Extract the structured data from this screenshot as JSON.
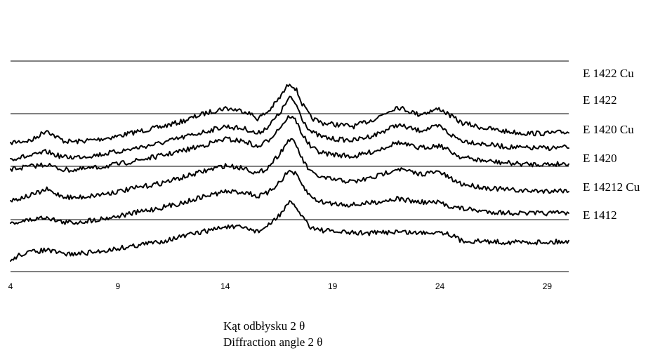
{
  "chart_data": {
    "type": "line",
    "title": "",
    "xlabel_lines": [
      "Kąt odbłysku 2 θ",
      "Diffraction angle 2 θ"
    ],
    "ylabel": "",
    "xlim": [
      4,
      30
    ],
    "xticks": [
      4,
      9,
      14,
      19,
      24,
      29
    ],
    "grid": true,
    "legend": "right (series labels beside curves)",
    "series": [
      {
        "name": "E 1422 Cu",
        "points": [
          [
            4,
            -58
          ],
          [
            5,
            -55
          ],
          [
            5.7,
            -40
          ],
          [
            6,
            -48
          ],
          [
            6.5,
            -56
          ],
          [
            7,
            -57
          ],
          [
            8,
            -54
          ],
          [
            9,
            -49
          ],
          [
            10,
            -42
          ],
          [
            11,
            -36
          ],
          [
            12,
            -28
          ],
          [
            13,
            -17
          ],
          [
            14,
            -9
          ],
          [
            15,
            -14
          ],
          [
            15.5,
            -24
          ],
          [
            16,
            -14
          ],
          [
            16.5,
            4
          ],
          [
            17,
            27
          ],
          [
            17.3,
            18
          ],
          [
            17.6,
            -4
          ],
          [
            18,
            -23
          ],
          [
            18.5,
            -30
          ],
          [
            19,
            -32
          ],
          [
            20,
            -35
          ],
          [
            21,
            -24
          ],
          [
            22,
            -7
          ],
          [
            23,
            -18
          ],
          [
            24,
            -10
          ],
          [
            24.5,
            -20
          ],
          [
            25,
            -30
          ],
          [
            26,
            -37
          ],
          [
            27,
            -42
          ],
          [
            28,
            -45
          ],
          [
            29,
            -45
          ],
          [
            30,
            -43
          ]
        ]
      },
      {
        "name": "E 1422",
        "points": [
          [
            4,
            -68
          ],
          [
            5,
            -64
          ],
          [
            5.7,
            -58
          ],
          [
            6,
            -62
          ],
          [
            6.5,
            -66
          ],
          [
            7,
            -66
          ],
          [
            8,
            -63
          ],
          [
            9,
            -58
          ],
          [
            10,
            -52
          ],
          [
            11,
            -46
          ],
          [
            12,
            -38
          ],
          [
            13,
            -30
          ],
          [
            14,
            -22
          ],
          [
            15,
            -26
          ],
          [
            15.5,
            -33
          ],
          [
            16,
            -22
          ],
          [
            16.5,
            -5
          ],
          [
            17,
            19
          ],
          [
            17.3,
            10
          ],
          [
            17.6,
            -12
          ],
          [
            18,
            -30
          ],
          [
            18.5,
            -37
          ],
          [
            19,
            -40
          ],
          [
            20,
            -42
          ],
          [
            21,
            -34
          ],
          [
            22,
            -20
          ],
          [
            23,
            -28
          ],
          [
            24,
            -22
          ],
          [
            24.5,
            -34
          ],
          [
            25,
            -42
          ],
          [
            26,
            -47
          ],
          [
            27,
            -51
          ],
          [
            28,
            -53
          ],
          [
            29,
            -53
          ],
          [
            30,
            -52
          ]
        ]
      },
      {
        "name": "E 1420 Cu",
        "points": [
          [
            4,
            -61
          ],
          [
            5,
            -57
          ],
          [
            5.7,
            -54
          ],
          [
            6,
            -58
          ],
          [
            6.5,
            -62
          ],
          [
            7,
            -62
          ],
          [
            8,
            -59
          ],
          [
            9,
            -54
          ],
          [
            10,
            -48
          ],
          [
            11,
            -42
          ],
          [
            12,
            -35
          ],
          [
            13,
            -27
          ],
          [
            14,
            -18
          ],
          [
            15,
            -22
          ],
          [
            15.5,
            -30
          ],
          [
            16,
            -20
          ],
          [
            16.5,
            -3
          ],
          [
            17,
            15
          ],
          [
            17.3,
            8
          ],
          [
            17.6,
            -12
          ],
          [
            18,
            -30
          ],
          [
            18.5,
            -38
          ],
          [
            19,
            -40
          ],
          [
            20,
            -43
          ],
          [
            21,
            -35
          ],
          [
            22,
            -23
          ],
          [
            23,
            -31
          ],
          [
            24,
            -27
          ],
          [
            24.5,
            -36
          ],
          [
            25,
            -44
          ],
          [
            26,
            -49
          ],
          [
            27,
            -52
          ],
          [
            28,
            -54
          ],
          [
            29,
            -54
          ],
          [
            30,
            -53
          ]
        ]
      },
      {
        "name": "E 1420",
        "points": [
          [
            4,
            -68
          ],
          [
            5,
            -60
          ],
          [
            5.7,
            -52
          ],
          [
            6,
            -57
          ],
          [
            6.5,
            -62
          ],
          [
            7,
            -64
          ],
          [
            8,
            -60
          ],
          [
            9,
            -55
          ],
          [
            10,
            -49
          ],
          [
            11,
            -43
          ],
          [
            12,
            -35
          ],
          [
            13,
            -26
          ],
          [
            14,
            -18
          ],
          [
            15,
            -22
          ],
          [
            15.5,
            -30
          ],
          [
            16,
            -20
          ],
          [
            16.5,
            -2
          ],
          [
            17,
            20
          ],
          [
            17.3,
            12
          ],
          [
            17.6,
            -10
          ],
          [
            18,
            -28
          ],
          [
            18.5,
            -35
          ],
          [
            19,
            -38
          ],
          [
            20,
            -41
          ],
          [
            21,
            -34
          ],
          [
            22,
            -22
          ],
          [
            23,
            -30
          ],
          [
            24,
            -27
          ],
          [
            24.5,
            -37
          ],
          [
            25,
            -44
          ],
          [
            26,
            -49
          ],
          [
            27,
            -52
          ],
          [
            28,
            -54
          ],
          [
            29,
            -54
          ],
          [
            30,
            -53
          ]
        ]
      },
      {
        "name": "E 14212 Cu",
        "points": [
          [
            4,
            -63
          ],
          [
            5,
            -58
          ],
          [
            5.7,
            -54
          ],
          [
            6,
            -58
          ],
          [
            6.5,
            -62
          ],
          [
            7,
            -62
          ],
          [
            8,
            -58
          ],
          [
            9,
            -53
          ],
          [
            10,
            -47
          ],
          [
            11,
            -41
          ],
          [
            12,
            -34
          ],
          [
            13,
            -25
          ],
          [
            14,
            -18
          ],
          [
            15,
            -19
          ],
          [
            15.5,
            -25
          ],
          [
            16,
            -20
          ],
          [
            16.5,
            -5
          ],
          [
            17,
            12
          ],
          [
            17.3,
            6
          ],
          [
            17.6,
            -10
          ],
          [
            18,
            -26
          ],
          [
            18.5,
            -33
          ],
          [
            19,
            -35
          ],
          [
            20,
            -37
          ],
          [
            21,
            -33
          ],
          [
            22,
            -28
          ],
          [
            23,
            -33
          ],
          [
            24,
            -34
          ],
          [
            24.5,
            -39
          ],
          [
            25,
            -42
          ],
          [
            26,
            -46
          ],
          [
            27,
            -48
          ],
          [
            28,
            -49
          ],
          [
            29,
            -49
          ],
          [
            30,
            -48
          ]
        ]
      },
      {
        "name": "E 1412",
        "points": [
          [
            4,
            -80
          ],
          [
            4.05,
            -78
          ],
          [
            4.5,
            -70
          ],
          [
            5,
            -67
          ],
          [
            5.7,
            -64
          ],
          [
            6,
            -67
          ],
          [
            6.5,
            -70
          ],
          [
            7,
            -70
          ],
          [
            8,
            -67
          ],
          [
            9,
            -62
          ],
          [
            10,
            -57
          ],
          [
            11,
            -52
          ],
          [
            12,
            -45
          ],
          [
            13,
            -38
          ],
          [
            14,
            -31
          ],
          [
            15,
            -33
          ],
          [
            15.5,
            -38
          ],
          [
            16,
            -30
          ],
          [
            16.5,
            -15
          ],
          [
            17,
            3
          ],
          [
            17.3,
            -3
          ],
          [
            17.6,
            -17
          ],
          [
            18,
            -32
          ],
          [
            18.5,
            -36
          ],
          [
            19,
            -38
          ],
          [
            20,
            -40
          ],
          [
            21,
            -40
          ],
          [
            22,
            -38
          ],
          [
            23,
            -40
          ],
          [
            24,
            -38
          ],
          [
            24.5,
            -42
          ],
          [
            25,
            -51
          ],
          [
            26,
            -52
          ],
          [
            27,
            -53
          ],
          [
            28,
            -53
          ],
          [
            29,
            -53
          ],
          [
            30,
            -52
          ]
        ]
      }
    ]
  }
}
